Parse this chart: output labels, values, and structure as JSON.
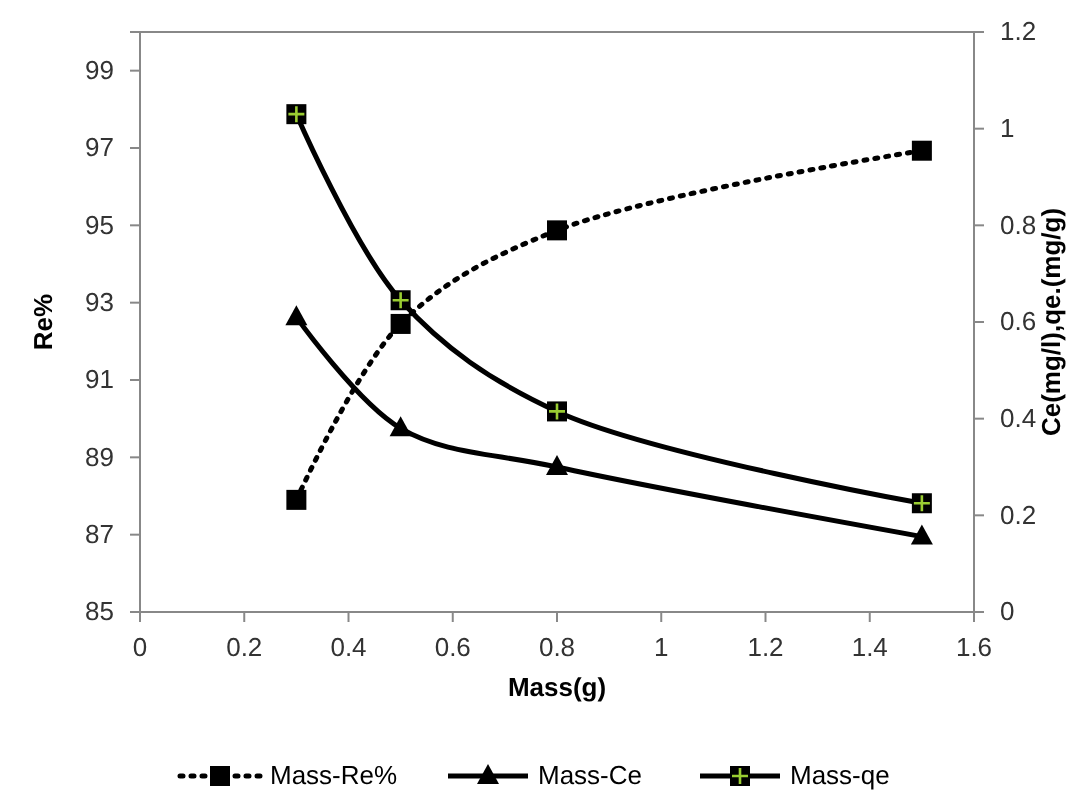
{
  "chart_data": {
    "type": "line",
    "xlabel": "Mass(g)",
    "ylabel": "Re%",
    "y2label": "Ce(mg/l),qe.(mg/g)",
    "xlim": [
      0,
      1.6
    ],
    "xticks": [
      0,
      0.2,
      0.4,
      0.6,
      0.8,
      1,
      1.2,
      1.4,
      1.6
    ],
    "ylim": [
      85,
      100
    ],
    "yticks": [
      85,
      87,
      89,
      91,
      93,
      95,
      97,
      99
    ],
    "y2lim": [
      0,
      1.2
    ],
    "y2ticks": [
      0,
      0.2,
      0.4,
      0.6,
      0.8,
      1,
      1.2
    ],
    "x": [
      0.3,
      0.5,
      0.8,
      1.5
    ],
    "legend": "bottom",
    "grid": false,
    "series": [
      {
        "name": "Mass-Re%",
        "color": "#000000",
        "values": [
          87.9,
          92.45,
          94.87,
          96.93
        ],
        "marker": "square",
        "line_style": "dotted"
      },
      {
        "name": "Mass-Ce",
        "color": "#000000",
        "values": [
          0.61,
          0.38,
          0.3,
          0.156
        ],
        "marker": "triangle",
        "line_style": "solid",
        "axis": "y2"
      },
      {
        "name": "Mass-qe",
        "color": "#000000",
        "values": [
          1.03,
          0.645,
          0.415,
          0.225
        ],
        "marker": "square",
        "line_style": "solid",
        "axis": "y2"
      }
    ]
  }
}
